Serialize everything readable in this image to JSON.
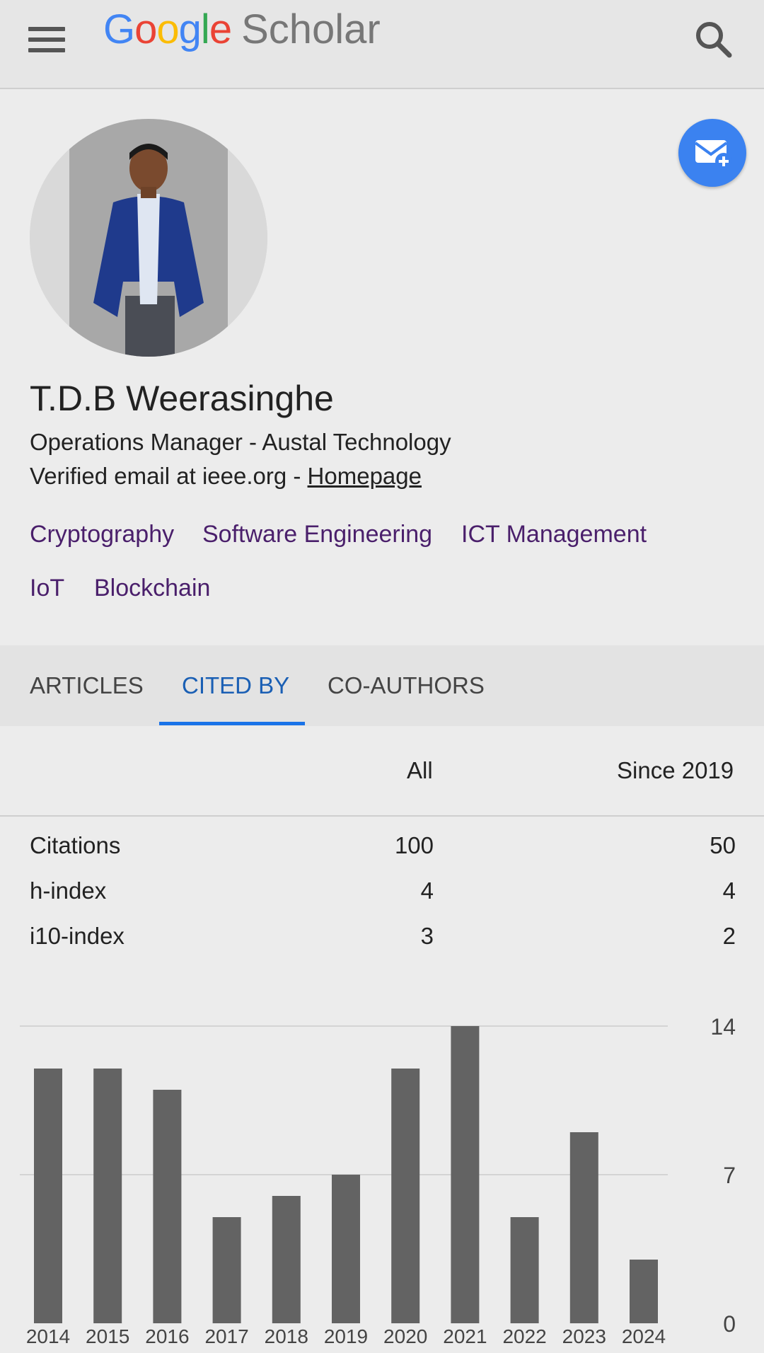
{
  "header": {
    "menu_icon": "hamburger-menu-icon",
    "brand_google": [
      "G",
      "o",
      "o",
      "g",
      "l",
      "e"
    ],
    "brand_product": "Scholar",
    "search_icon": "search-icon"
  },
  "profile": {
    "name": "T.D.B Weerasinghe",
    "affiliation": "Operations Manager - Austal Technology",
    "verified_prefix": "Verified email at ieee.org - ",
    "homepage_label": "Homepage",
    "email_alert_icon": "email-plus-icon",
    "interests": [
      "Cryptography",
      "Software Engineering",
      "ICT Management",
      "IoT",
      "Blockchain"
    ]
  },
  "tabs": [
    {
      "label": "ARTICLES",
      "active": false
    },
    {
      "label": "CITED BY",
      "active": true
    },
    {
      "label": "CO-AUTHORS",
      "active": false
    }
  ],
  "stats": {
    "columns": [
      "All",
      "Since 2019"
    ],
    "rows": [
      {
        "label": "Citations",
        "all": "100",
        "since": "50"
      },
      {
        "label": "h-index",
        "all": "4",
        "since": "4"
      },
      {
        "label": "i10-index",
        "all": "3",
        "since": "2"
      }
    ]
  },
  "colors": {
    "bar": "#636363",
    "accent": "#1a73e8",
    "interest_link": "#4a1f6b",
    "fab": "#3b82f0"
  },
  "chart_data": {
    "type": "bar",
    "categories": [
      "2014",
      "2015",
      "2016",
      "2017",
      "2018",
      "2019",
      "2020",
      "2021",
      "2022",
      "2023",
      "2024"
    ],
    "values": [
      12,
      12,
      11,
      5,
      6,
      7,
      12,
      14,
      5,
      9,
      3
    ],
    "yticks": [
      "0",
      "7",
      "14"
    ],
    "ylim": [
      0,
      14
    ],
    "grid": true,
    "y_axis_side": "right"
  }
}
